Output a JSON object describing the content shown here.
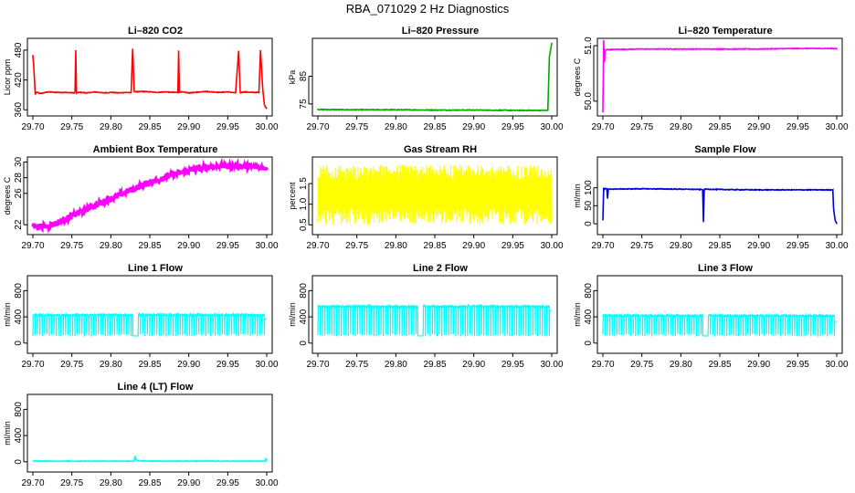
{
  "page_title": "RBA_071029  2 Hz Diagnostics",
  "chart_data": [
    {
      "id": "co2",
      "type": "line",
      "title": "Li–820 CO2",
      "ylabel": "Licor ppm",
      "color": "#ff0000",
      "xlim": [
        29.7,
        30.0
      ],
      "xticks": [
        "29.70",
        "29.75",
        "29.80",
        "29.85",
        "29.90",
        "29.95",
        "30.00"
      ],
      "ylim": [
        355,
        500
      ],
      "yticks": [
        {
          "v": 360,
          "label": "360"
        },
        {
          "v": 420,
          "label": "420"
        },
        {
          "v": 480,
          "label": "480"
        }
      ],
      "x": [
        29.7,
        29.701,
        29.703,
        29.705,
        29.71,
        29.72,
        29.73,
        29.74,
        29.754,
        29.755,
        29.756,
        29.76,
        29.77,
        29.78,
        29.79,
        29.8,
        29.81,
        29.82,
        29.826,
        29.828,
        29.83,
        29.835,
        29.84,
        29.85,
        29.86,
        29.87,
        29.88,
        29.886,
        29.887,
        29.888,
        29.89,
        29.9,
        29.91,
        29.92,
        29.93,
        29.94,
        29.95,
        29.96,
        29.964,
        29.966,
        29.97,
        29.98,
        29.99,
        29.992,
        29.995,
        29.997,
        30.0
      ],
      "values": [
        470,
        450,
        392,
        395,
        393,
        396,
        395,
        395,
        394,
        480,
        394,
        395,
        394,
        396,
        394,
        395,
        394,
        395,
        394,
        483,
        397,
        396,
        397,
        396,
        395,
        396,
        395,
        395,
        479,
        395,
        396,
        394,
        395,
        397,
        396,
        395,
        396,
        394,
        478,
        394,
        396,
        395,
        395,
        480,
        400,
        370,
        362
      ],
      "annotations": "frequent positive spikes to ~480 ppm; baseline ~395 ppm"
    },
    {
      "id": "pressure",
      "type": "line",
      "title": "Li–820 Pressure",
      "ylabel": "kPa",
      "color": "#00aa00",
      "xlim": [
        29.7,
        30.0
      ],
      "xticks": [
        "29.70",
        "29.75",
        "29.80",
        "29.85",
        "29.90",
        "29.95",
        "30.00"
      ],
      "ylim": [
        72,
        98
      ],
      "yticks": [
        {
          "v": 75,
          "label": "75"
        },
        {
          "v": 85,
          "label": "85"
        }
      ],
      "x": [
        29.7,
        29.75,
        29.8,
        29.85,
        29.9,
        29.95,
        29.995,
        29.997,
        30.0
      ],
      "values": [
        73.0,
        72.9,
        72.9,
        72.8,
        72.8,
        72.7,
        72.7,
        92,
        97
      ]
    },
    {
      "id": "li820_temp",
      "type": "line",
      "title": "Li–820 Temperature",
      "ylabel": "degrees C",
      "color": "#ff00ff",
      "xlim": [
        29.7,
        30.0
      ],
      "xticks": [
        "29.70",
        "29.75",
        "29.80",
        "29.85",
        "29.90",
        "29.95",
        "30.00"
      ],
      "ylim": [
        49.8,
        51.1
      ],
      "yticks": [
        {
          "v": 50.0,
          "label": "50.0"
        },
        {
          "v": 51.0,
          "label": "51.0"
        }
      ],
      "x": [
        29.7,
        29.701,
        29.702,
        29.703,
        29.705,
        29.75,
        29.8,
        29.85,
        29.9,
        29.95,
        30.0
      ],
      "values": [
        49.8,
        51.1,
        50.7,
        50.92,
        50.93,
        50.94,
        50.94,
        50.94,
        50.94,
        50.95,
        50.95
      ]
    },
    {
      "id": "box_temp",
      "type": "line",
      "title": "Ambient Box Temperature",
      "ylabel": "degrees C",
      "color": "#ff00ff",
      "xlim": [
        29.7,
        30.0
      ],
      "xticks": [
        "29.70",
        "29.75",
        "29.80",
        "29.85",
        "29.90",
        "29.95",
        "30.00"
      ],
      "ylim": [
        21.2,
        30.4
      ],
      "yticks": [
        {
          "v": 22,
          "label": "22"
        },
        {
          "v": 26,
          "label": "26"
        },
        {
          "v": 28,
          "label": "28"
        },
        {
          "v": 30,
          "label": "30"
        }
      ],
      "x": [
        29.7,
        29.72,
        29.74,
        29.76,
        29.78,
        29.8,
        29.82,
        29.84,
        29.86,
        29.88,
        29.9,
        29.92,
        29.94,
        29.96,
        29.98,
        30.0
      ],
      "values": [
        21.8,
        21.8,
        22.6,
        23.6,
        24.5,
        25.3,
        26.2,
        27.0,
        27.7,
        28.4,
        28.9,
        29.3,
        29.5,
        29.5,
        29.4,
        29.3
      ],
      "noise_band": 0.8
    },
    {
      "id": "rh",
      "type": "band",
      "title": "Gas Stream RH",
      "ylabel": "percent",
      "color": "#ffff00",
      "xlim": [
        29.7,
        30.0
      ],
      "xticks": [
        "29.70",
        "29.75",
        "29.80",
        "29.85",
        "29.90",
        "29.95",
        "30.00"
      ],
      "ylim": [
        0.35,
        2.1
      ],
      "yticks": [
        {
          "v": 0.5,
          "label": "0.5"
        },
        {
          "v": 1.0,
          "label": "1.0"
        },
        {
          "v": 1.5,
          "label": "1.5"
        }
      ],
      "band_low": [
        0.5,
        0.9
      ],
      "band_high": [
        1.6,
        1.95
      ]
    },
    {
      "id": "sample_flow",
      "type": "line",
      "title": "Sample Flow",
      "ylabel": "ml/min",
      "color": "#0000dd",
      "xlim": [
        29.7,
        30.0
      ],
      "xticks": [
        "29.70",
        "29.75",
        "29.80",
        "29.85",
        "29.90",
        "29.95",
        "30.00"
      ],
      "ylim": [
        -20,
        180
      ],
      "yticks": [
        {
          "v": 0,
          "label": "0"
        },
        {
          "v": 50,
          "label": "50"
        },
        {
          "v": 100,
          "label": "100"
        }
      ],
      "x": [
        29.7,
        29.701,
        29.702,
        29.703,
        29.705,
        29.706,
        29.707,
        29.75,
        29.8,
        29.828,
        29.829,
        29.83,
        29.831,
        29.85,
        29.9,
        29.95,
        29.995,
        29.996,
        29.998,
        30.0
      ],
      "values": [
        10,
        100,
        95,
        98,
        97,
        70,
        96,
        97,
        96,
        95,
        5,
        95,
        96,
        95,
        94,
        94,
        94,
        40,
        10,
        0
      ]
    },
    {
      "id": "line1",
      "type": "line",
      "title": "Line 1 Flow",
      "ylabel": "ml/min",
      "color": "#00ffff",
      "xlim": [
        29.7,
        30.0
      ],
      "xticks": [
        "29.70",
        "29.75",
        "29.80",
        "29.85",
        "29.90",
        "29.95",
        "30.00"
      ],
      "ylim": [
        -100,
        1000
      ],
      "yticks": [
        {
          "v": 0,
          "label": "0"
        },
        {
          "v": 400,
          "label": "400"
        },
        {
          "v": 800,
          "label": "800"
        }
      ],
      "high": 430,
      "low": 100,
      "gap": [
        29.828,
        29.835
      ],
      "tail": 370
    },
    {
      "id": "line2",
      "type": "line",
      "title": "Line 2 Flow",
      "ylabel": "ml/min",
      "color": "#00ffff",
      "xlim": [
        29.7,
        30.0
      ],
      "xticks": [
        "29.70",
        "29.75",
        "29.80",
        "29.85",
        "29.90",
        "29.95",
        "30.00"
      ],
      "ylim": [
        -100,
        1000
      ],
      "yticks": [
        {
          "v": 0,
          "label": "0"
        },
        {
          "v": 400,
          "label": "400"
        },
        {
          "v": 800,
          "label": "800"
        }
      ],
      "high": 560,
      "low": 100,
      "gap": [
        29.828,
        29.835
      ],
      "tail": 500
    },
    {
      "id": "line3",
      "type": "line",
      "title": "Line 3 Flow",
      "ylabel": "ml/min",
      "color": "#00ffff",
      "xlim": [
        29.7,
        30.0
      ],
      "xticks": [
        "29.70",
        "29.75",
        "29.80",
        "29.85",
        "29.90",
        "29.95",
        "30.00"
      ],
      "ylim": [
        -100,
        1000
      ],
      "yticks": [
        {
          "v": 0,
          "label": "0"
        },
        {
          "v": 400,
          "label": "400"
        },
        {
          "v": 800,
          "label": "800"
        }
      ],
      "high": 420,
      "low": 100,
      "gap": [
        29.828,
        29.835
      ],
      "tail": 330
    },
    {
      "id": "line4",
      "type": "line",
      "title": "Line 4 (LT) Flow",
      "ylabel": "ml/min",
      "color": "#00ffff",
      "xlim": [
        29.7,
        30.0
      ],
      "xticks": [
        "29.70",
        "29.75",
        "29.80",
        "29.85",
        "29.90",
        "29.95",
        "30.00"
      ],
      "ylim": [
        -100,
        1000
      ],
      "yticks": [
        {
          "v": 0,
          "label": "0"
        },
        {
          "v": 400,
          "label": "400"
        },
        {
          "v": 800,
          "label": "800"
        }
      ],
      "x": [
        29.7,
        29.75,
        29.8,
        29.83,
        29.831,
        29.832,
        29.835,
        29.85,
        29.9,
        29.95,
        29.998,
        29.999,
        30.0
      ],
      "values": [
        10,
        10,
        10,
        10,
        90,
        30,
        15,
        10,
        10,
        10,
        10,
        60,
        15
      ]
    }
  ]
}
